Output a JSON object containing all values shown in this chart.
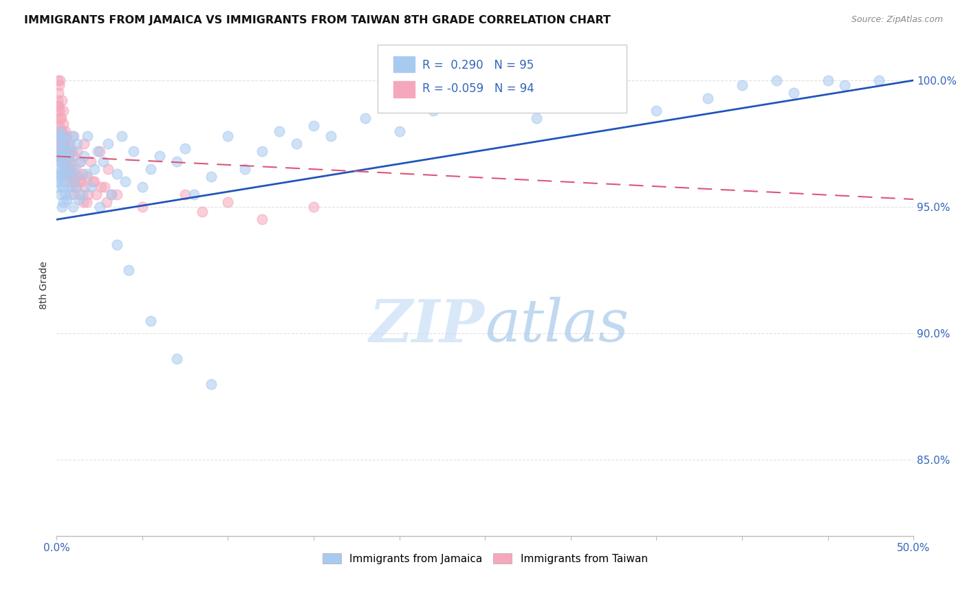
{
  "title": "IMMIGRANTS FROM JAMAICA VS IMMIGRANTS FROM TAIWAN 8TH GRADE CORRELATION CHART",
  "source": "Source: ZipAtlas.com",
  "ylabel": "8th Grade",
  "y_ticks": [
    85.0,
    90.0,
    95.0,
    100.0
  ],
  "x_range": [
    0.0,
    50.0
  ],
  "y_range": [
    82.0,
    101.8
  ],
  "R_jamaica": 0.29,
  "N_jamaica": 95,
  "R_taiwan": -0.059,
  "N_taiwan": 94,
  "color_jamaica": "#a8caf0",
  "color_taiwan": "#f5a8bc",
  "line_color_jamaica": "#2255bb",
  "line_color_taiwan": "#dd5577",
  "legend_label_jamaica": "Immigrants from Jamaica",
  "legend_label_taiwan": "Immigrants from Taiwan",
  "jamaica_x": [
    0.05,
    0.05,
    0.08,
    0.1,
    0.1,
    0.12,
    0.15,
    0.15,
    0.18,
    0.2,
    0.2,
    0.22,
    0.25,
    0.25,
    0.28,
    0.3,
    0.3,
    0.32,
    0.35,
    0.35,
    0.38,
    0.4,
    0.4,
    0.42,
    0.45,
    0.45,
    0.5,
    0.5,
    0.55,
    0.6,
    0.6,
    0.65,
    0.7,
    0.7,
    0.75,
    0.8,
    0.85,
    0.9,
    0.95,
    1.0,
    1.0,
    1.1,
    1.1,
    1.2,
    1.3,
    1.4,
    1.5,
    1.6,
    1.7,
    1.8,
    2.0,
    2.2,
    2.4,
    2.5,
    2.7,
    3.0,
    3.2,
    3.5,
    3.8,
    4.0,
    4.5,
    5.0,
    5.5,
    6.0,
    7.0,
    7.5,
    8.0,
    9.0,
    10.0,
    11.0,
    12.0,
    13.0,
    14.0,
    15.0,
    16.0,
    18.0,
    20.0,
    22.0,
    25.0,
    28.0,
    30.0,
    32.0,
    35.0,
    38.0,
    40.0,
    42.0,
    43.0,
    45.0,
    46.0,
    48.0,
    3.5,
    4.2,
    5.5,
    7.0,
    9.0
  ],
  "jamaica_y": [
    96.2,
    97.0,
    95.8,
    96.5,
    97.8,
    96.0,
    97.2,
    98.0,
    96.3,
    97.5,
    96.8,
    95.5,
    97.0,
    96.2,
    97.8,
    95.0,
    96.5,
    97.3,
    95.8,
    96.9,
    97.5,
    95.2,
    96.8,
    97.0,
    95.5,
    96.3,
    97.2,
    96.0,
    97.8,
    95.3,
    96.5,
    97.0,
    95.8,
    96.3,
    97.5,
    95.5,
    96.8,
    97.2,
    95.0,
    96.5,
    97.8,
    95.8,
    96.2,
    97.5,
    95.3,
    96.8,
    95.5,
    97.0,
    96.3,
    97.8,
    95.8,
    96.5,
    97.2,
    95.0,
    96.8,
    97.5,
    95.5,
    96.3,
    97.8,
    96.0,
    97.2,
    95.8,
    96.5,
    97.0,
    96.8,
    97.3,
    95.5,
    96.2,
    97.8,
    96.5,
    97.2,
    98.0,
    97.5,
    98.2,
    97.8,
    98.5,
    98.0,
    98.8,
    99.2,
    98.5,
    99.0,
    99.5,
    98.8,
    99.3,
    99.8,
    100.0,
    99.5,
    100.0,
    99.8,
    100.0,
    93.5,
    92.5,
    90.5,
    89.0,
    88.0
  ],
  "taiwan_x": [
    0.02,
    0.05,
    0.05,
    0.08,
    0.1,
    0.1,
    0.12,
    0.15,
    0.15,
    0.18,
    0.2,
    0.2,
    0.22,
    0.25,
    0.28,
    0.3,
    0.3,
    0.32,
    0.35,
    0.38,
    0.4,
    0.4,
    0.42,
    0.45,
    0.5,
    0.5,
    0.55,
    0.6,
    0.65,
    0.7,
    0.7,
    0.75,
    0.8,
    0.85,
    0.9,
    0.95,
    1.0,
    1.1,
    1.2,
    1.3,
    1.4,
    1.5,
    1.6,
    1.8,
    2.0,
    2.2,
    2.5,
    2.8,
    3.0,
    3.5,
    0.08,
    0.12,
    0.18,
    0.22,
    0.28,
    0.32,
    0.38,
    0.42,
    0.48,
    0.52,
    0.58,
    0.62,
    0.68,
    0.72,
    0.78,
    0.82,
    0.88,
    0.92,
    0.98,
    1.05,
    1.15,
    1.25,
    1.35,
    1.45,
    1.55,
    1.65,
    1.75,
    1.85,
    2.1,
    2.3,
    2.6,
    2.9,
    3.2,
    0.05,
    0.15,
    0.25,
    0.35,
    0.45,
    5.0,
    7.5,
    8.5,
    10.0,
    12.0,
    15.0
  ],
  "taiwan_y": [
    98.5,
    99.2,
    100.0,
    98.8,
    99.5,
    97.8,
    99.0,
    98.2,
    99.8,
    97.5,
    98.8,
    100.0,
    97.2,
    98.5,
    97.0,
    99.2,
    97.8,
    98.0,
    97.5,
    98.3,
    97.0,
    98.8,
    96.8,
    97.5,
    98.0,
    96.5,
    97.2,
    97.8,
    96.3,
    97.0,
    97.5,
    96.8,
    97.2,
    96.5,
    97.8,
    96.2,
    97.0,
    96.5,
    97.2,
    96.0,
    96.8,
    96.3,
    97.5,
    96.2,
    96.8,
    96.0,
    97.2,
    95.8,
    96.5,
    95.5,
    98.2,
    99.0,
    97.8,
    98.5,
    97.5,
    98.0,
    97.2,
    97.8,
    96.8,
    97.5,
    96.5,
    97.2,
    96.2,
    96.8,
    96.0,
    96.5,
    95.8,
    96.2,
    95.5,
    96.0,
    95.8,
    96.2,
    95.5,
    96.0,
    95.2,
    95.8,
    95.2,
    95.5,
    96.0,
    95.5,
    95.8,
    95.2,
    95.5,
    97.0,
    97.5,
    96.8,
    97.2,
    96.5,
    95.0,
    95.5,
    94.8,
    95.2,
    94.5,
    95.0
  ]
}
